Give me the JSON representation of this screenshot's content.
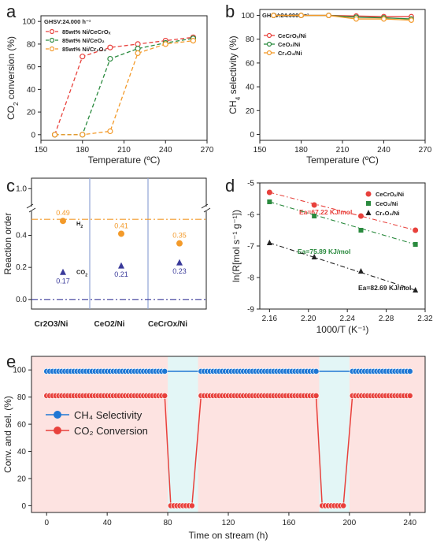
{
  "chart_data": [
    {
      "panel": "a",
      "type": "line",
      "note": "GHSV:24.000 h⁻¹",
      "xlabel": "Temperature (ºC)",
      "ylabel_parts": [
        "CO",
        "2",
        " conversion (%)"
      ],
      "xlim": [
        150,
        270
      ],
      "ylim": [
        -5,
        105
      ],
      "xticks": [
        150,
        180,
        210,
        240,
        270
      ],
      "yticks": [
        0,
        20,
        40,
        60,
        80,
        100
      ],
      "x": [
        160,
        180,
        200,
        220,
        240,
        260
      ],
      "series": [
        {
          "name": "85wt% Ni/CeCrOₓ",
          "color": "#e8413c",
          "values": [
            0,
            69,
            77,
            80,
            83,
            86
          ]
        },
        {
          "name": "85wt% Ni/CeO₂",
          "color": "#2a8a3e",
          "values": [
            0,
            0,
            67,
            76,
            81,
            85
          ]
        },
        {
          "name": "85wt% Ni/Cr₂O₃",
          "color": "#f39a2a",
          "values": [
            0,
            0,
            3,
            72,
            80,
            83
          ]
        }
      ]
    },
    {
      "panel": "b",
      "type": "line",
      "note": "GHSV:24.000 h⁻¹",
      "xlabel": "Temperature (ºC)",
      "ylabel_parts": [
        "CH",
        "4",
        " selectivity (%)"
      ],
      "xlim": [
        150,
        270
      ],
      "ylim": [
        -5,
        105
      ],
      "xticks": [
        150,
        180,
        210,
        240,
        270
      ],
      "yticks": [
        0,
        20,
        40,
        60,
        80,
        100
      ],
      "x": [
        160,
        180,
        200,
        220,
        240,
        260
      ],
      "series": [
        {
          "name": "CeCrOₓ/Ni",
          "color": "#e8413c",
          "values": [
            100,
            100,
            100,
            99.5,
            99,
            99
          ]
        },
        {
          "name": "CeO₂/Ni",
          "color": "#2a8a3e",
          "values": [
            100,
            100,
            100,
            98.5,
            98,
            97
          ]
        },
        {
          "name": "Cr₂O₃/Ni",
          "color": "#f39a2a",
          "values": [
            100,
            100,
            100,
            97,
            97,
            96
          ]
        }
      ]
    },
    {
      "panel": "c",
      "type": "scatter",
      "ylabel": "Reaction order",
      "categories": [
        "Cr2O3/Ni",
        "CeO2/Ni",
        "CeCrOx/Ni"
      ],
      "yticks_lower": [
        0.0,
        0.2,
        0.4
      ],
      "ytick_upper": 1.0,
      "ylim_lower": [
        -0.05,
        0.55
      ],
      "ylim_upper": [
        0.9,
        1.05
      ],
      "series": [
        {
          "name": "H₂",
          "color": "#f39a2a",
          "marker": "circle",
          "values": [
            0.49,
            0.41,
            0.35
          ],
          "labels": [
            "0.49",
            "0.41",
            "0.35"
          ]
        },
        {
          "name": "CO₂",
          "color": "#3a3a9a",
          "marker": "triangle",
          "values": [
            0.17,
            0.21,
            0.23
          ],
          "labels": [
            "0.17",
            "0.21",
            "0.23"
          ]
        }
      ],
      "ref_lines": [
        {
          "y": 0.5,
          "color": "#f39a2a",
          "style": "dash-dot"
        },
        {
          "y": 0.0,
          "color": "#3a3a9a",
          "style": "dash-dot"
        }
      ]
    },
    {
      "panel": "d",
      "type": "scatter",
      "xlabel": "1000/T (K⁻¹)",
      "ylabel": "ln(R[mol s⁻¹ g⁻¹])",
      "xlim": [
        2.15,
        2.32
      ],
      "ylim": [
        -9,
        -5
      ],
      "xticks": [
        2.16,
        2.2,
        2.24,
        2.28,
        2.32
      ],
      "xtick_labels": [
        "2.16",
        "2.20",
        "2.24",
        "2.28",
        "2.32"
      ],
      "yticks": [
        -9,
        -8,
        -7,
        -6,
        -5
      ],
      "series": [
        {
          "name": "CeCrOₓ/Ni",
          "color": "#e8413c",
          "marker": "circle",
          "x": [
            2.16,
            2.206,
            2.254,
            2.31
          ],
          "values": [
            -5.3,
            -5.7,
            -6.05,
            -6.5
          ],
          "ea": "Ea=67.22 KJ/mol"
        },
        {
          "name": "CeO₂/Ni",
          "color": "#2a8a3e",
          "marker": "square",
          "x": [
            2.16,
            2.206,
            2.254,
            2.31
          ],
          "values": [
            -5.6,
            -6.05,
            -6.5,
            -6.95
          ],
          "ea": "Ea=75.89 KJ/mol"
        },
        {
          "name": "Cr₂O₃/Ni",
          "color": "#222222",
          "marker": "triangle",
          "x": [
            2.16,
            2.206,
            2.254,
            2.31
          ],
          "values": [
            -6.9,
            -7.35,
            -7.8,
            -8.4
          ],
          "ea": "Ea=82.69 KJ/mol"
        }
      ]
    },
    {
      "panel": "e",
      "type": "line",
      "xlabel": "Time on stream (h)",
      "ylabel": "Conv. and sel. (%)",
      "xlim": [
        -10,
        250
      ],
      "ylim": [
        -5,
        110
      ],
      "xticks": [
        0,
        40,
        80,
        120,
        160,
        200,
        240
      ],
      "yticks": [
        0,
        20,
        40,
        60,
        80,
        100
      ],
      "shaded_regions": [
        [
          80,
          100
        ],
        [
          180,
          200
        ]
      ],
      "series": [
        {
          "name": "CH₄ Selectivity",
          "color": "#1f77d4",
          "segments": [
            [
              0,
              78,
              99
            ],
            [
              102,
              178,
              99
            ],
            [
              202,
              240,
              99
            ]
          ]
        },
        {
          "name": "CO₂ Conversion",
          "color": "#e8413c",
          "segments": [
            [
              0,
              78,
              81
            ],
            [
              82,
              96,
              0
            ],
            [
              102,
              178,
              81
            ],
            [
              182,
              196,
              0
            ],
            [
              202,
              240,
              81
            ]
          ]
        }
      ]
    }
  ]
}
